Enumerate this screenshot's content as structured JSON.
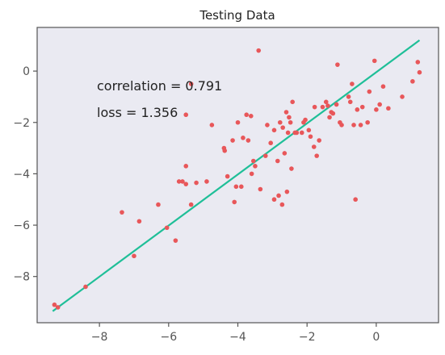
{
  "chart_data": {
    "type": "scatter",
    "title": "Testing Data",
    "xlabel": "",
    "ylabel": "",
    "xlim": [
      -9.8,
      1.8
    ],
    "ylim": [
      -9.8,
      1.7
    ],
    "x_ticks": [
      -8,
      -6,
      -4,
      -2,
      0
    ],
    "y_ticks": [
      0,
      -2,
      -4,
      -6,
      -8
    ],
    "x_tick_labels": [
      "−8",
      "−6",
      "−4",
      "−2",
      "0"
    ],
    "y_tick_labels": [
      "0",
      "−2",
      "−4",
      "−6",
      "−8"
    ],
    "grid": false,
    "colors": {
      "plot_background": "#eaeaf2",
      "axes_frame": "#555555",
      "points": "#e8575a",
      "fit_line": "#1fbf98"
    },
    "annotations": [
      {
        "text": "correlation = 0.791"
      },
      {
        "text": "loss = 1.356"
      }
    ],
    "fit_line": {
      "x": [
        -9.35,
        1.25
      ],
      "y": [
        -9.35,
        1.2
      ]
    },
    "points": [
      [
        -9.3,
        -9.1
      ],
      [
        -9.2,
        -9.2
      ],
      [
        -8.4,
        -8.4
      ],
      [
        -7.35,
        -5.5
      ],
      [
        -7.0,
        -7.2
      ],
      [
        -6.85,
        -5.85
      ],
      [
        -6.3,
        -5.2
      ],
      [
        -6.05,
        -6.1
      ],
      [
        -5.8,
        -6.6
      ],
      [
        -5.7,
        -4.3
      ],
      [
        -5.6,
        -4.3
      ],
      [
        -5.5,
        -3.7
      ],
      [
        -5.5,
        -4.4
      ],
      [
        -5.5,
        -1.7
      ],
      [
        -5.35,
        -0.5
      ],
      [
        -5.35,
        -5.2
      ],
      [
        -5.2,
        -4.35
      ],
      [
        -4.9,
        -4.3
      ],
      [
        -4.75,
        -2.1
      ],
      [
        -4.4,
        -3.0
      ],
      [
        -4.38,
        -3.1
      ],
      [
        -4.3,
        -4.1
      ],
      [
        -4.15,
        -2.7
      ],
      [
        -4.1,
        -5.1
      ],
      [
        -4.05,
        -4.5
      ],
      [
        -4.0,
        -2.0
      ],
      [
        -3.9,
        -4.5
      ],
      [
        -3.85,
        -2.6
      ],
      [
        -3.75,
        -1.7
      ],
      [
        -3.7,
        -2.7
      ],
      [
        -3.62,
        -1.75
      ],
      [
        -3.6,
        -4.0
      ],
      [
        -3.55,
        -3.5
      ],
      [
        -3.5,
        -3.7
      ],
      [
        -3.4,
        0.8
      ],
      [
        -3.35,
        -4.6
      ],
      [
        -3.2,
        -3.3
      ],
      [
        -3.15,
        -2.1
      ],
      [
        -3.05,
        -2.8
      ],
      [
        -2.95,
        -2.3
      ],
      [
        -2.95,
        -5.0
      ],
      [
        -2.85,
        -3.5
      ],
      [
        -2.82,
        -4.85
      ],
      [
        -2.78,
        -2.0
      ],
      [
        -2.72,
        -5.2
      ],
      [
        -2.7,
        -2.2
      ],
      [
        -2.65,
        -3.2
      ],
      [
        -2.6,
        -1.6
      ],
      [
        -2.58,
        -4.7
      ],
      [
        -2.55,
        -2.4
      ],
      [
        -2.52,
        -1.8
      ],
      [
        -2.48,
        -2.0
      ],
      [
        -2.45,
        -3.8
      ],
      [
        -2.42,
        -1.2
      ],
      [
        -2.35,
        -2.4
      ],
      [
        -2.3,
        -2.4
      ],
      [
        -2.15,
        -2.4
      ],
      [
        -2.1,
        -2.0
      ],
      [
        -2.05,
        -1.9
      ],
      [
        -1.95,
        -2.3
      ],
      [
        -1.9,
        -2.55
      ],
      [
        -1.8,
        -2.95
      ],
      [
        -1.78,
        -1.4
      ],
      [
        -1.72,
        -3.3
      ],
      [
        -1.65,
        -2.7
      ],
      [
        -1.55,
        -1.4
      ],
      [
        -1.45,
        -1.2
      ],
      [
        -1.4,
        -1.35
      ],
      [
        -1.35,
        -1.8
      ],
      [
        -1.3,
        -1.6
      ],
      [
        -1.25,
        -1.65
      ],
      [
        -1.15,
        -1.3
      ],
      [
        -1.12,
        0.25
      ],
      [
        -1.05,
        -2.0
      ],
      [
        -1.0,
        -2.1
      ],
      [
        -0.8,
        -1.0
      ],
      [
        -0.75,
        -1.2
      ],
      [
        -0.7,
        -0.5
      ],
      [
        -0.65,
        -2.1
      ],
      [
        -0.6,
        -5.0
      ],
      [
        -0.55,
        -1.5
      ],
      [
        -0.45,
        -2.1
      ],
      [
        -0.4,
        -1.4
      ],
      [
        -0.25,
        -2.0
      ],
      [
        -0.2,
        -0.8
      ],
      [
        -0.05,
        0.4
      ],
      [
        0.0,
        -1.5
      ],
      [
        0.1,
        -1.3
      ],
      [
        0.2,
        -0.6
      ],
      [
        0.35,
        -1.45
      ],
      [
        0.75,
        -1.0
      ],
      [
        1.05,
        -0.4
      ],
      [
        1.2,
        0.35
      ],
      [
        1.25,
        -0.05
      ]
    ]
  }
}
